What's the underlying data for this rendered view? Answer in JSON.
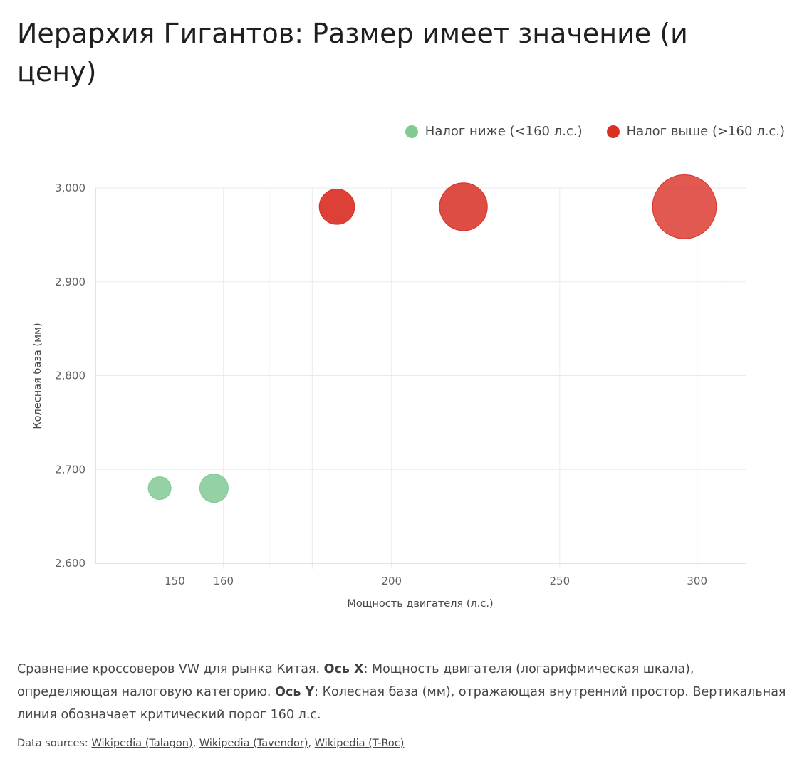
{
  "title": "Иерархия Гигантов: Размер имеет значение (и цену)",
  "legend": [
    {
      "label": "Налог ниже (<160 л.с.)",
      "color": "#81c995"
    },
    {
      "label": "Налог выше (>160 л.с.)",
      "color": "#d93025"
    }
  ],
  "chart_data": {
    "type": "scatter",
    "xscale": "log",
    "xlabel": "Мощность двигателя (л.с.)",
    "ylabel": "Колесная база (мм)",
    "xlim": [
      135,
      320
    ],
    "ylim": [
      2600,
      3000
    ],
    "xticks": [
      150,
      160,
      200,
      250,
      300
    ],
    "xtick_labels": [
      "150",
      "160",
      "200",
      "250",
      "300"
    ],
    "yticks": [
      2600,
      2700,
      2800,
      2900,
      3000
    ],
    "ytick_labels": [
      "2,600",
      "2,700",
      "2,800",
      "2,900",
      "3,000"
    ],
    "series": [
      {
        "name": "Налог ниже (<160 л.с.)",
        "color": "#81c995",
        "points": [
          {
            "x": 147,
            "y": 2680,
            "size": 1.0
          },
          {
            "x": 158,
            "y": 2680,
            "size": 1.25
          }
        ]
      },
      {
        "name": "Налог выше (>160 л.с.)",
        "color": "#d93025",
        "points": [
          {
            "x": 186,
            "y": 2980,
            "size": 1.55
          },
          {
            "x": 220,
            "y": 2980,
            "size": 2.1
          },
          {
            "x": 295,
            "y": 2980,
            "size": 2.8
          }
        ]
      }
    ],
    "grid": true
  },
  "caption": {
    "p1": "Сравнение кроссоверов VW для рынка Китая. ",
    "b1": "Ось X",
    "p2": ": Мощность двигателя (логарифмическая шкала), определяющая налоговую категорию. ",
    "b2": "Ось Y",
    "p3": ": Колесная база (мм), отражающая внутренний простор. Вертикальная линия обозначает критический порог 160 л.с."
  },
  "sources": {
    "prefix": "Data sources: ",
    "links": [
      "Wikipedia (Talagon)",
      "Wikipedia (Tavendor)",
      "Wikipedia (T-Roc)"
    ],
    "sep": ", "
  }
}
